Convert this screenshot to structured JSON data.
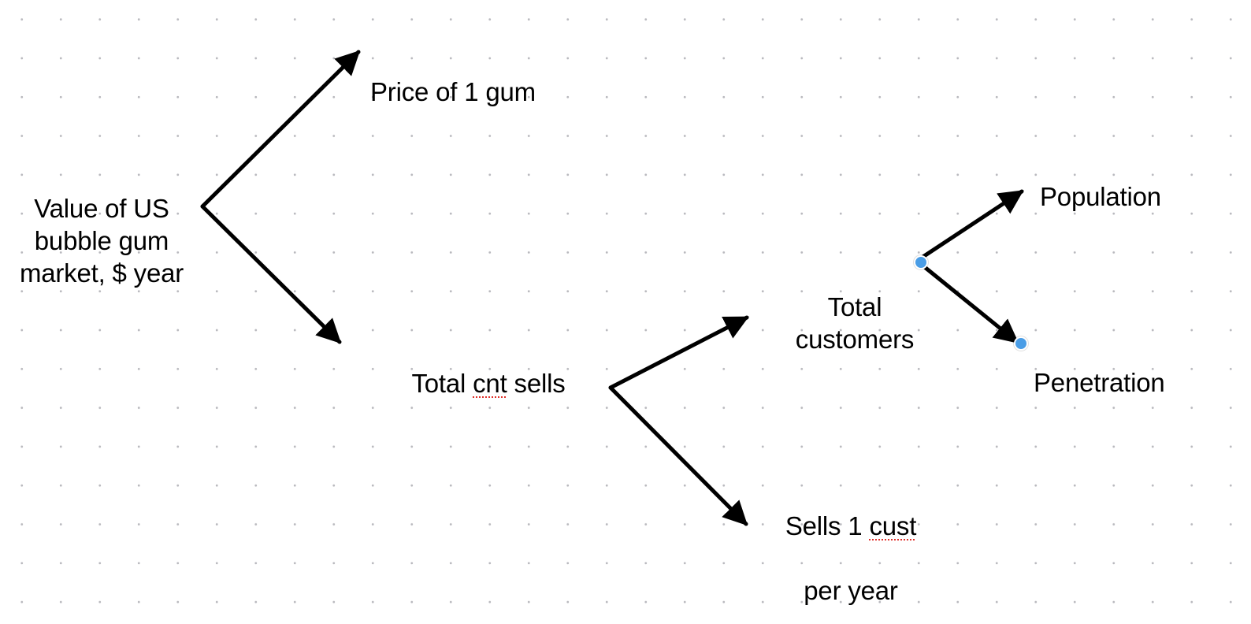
{
  "diagram": {
    "nodes": {
      "root": "Value of US\nbubble gum\nmarket, $ year",
      "price": "Price of 1 gum",
      "total_sells": {
        "before": "Total ",
        "flagged": "cnt",
        "after": " sells"
      },
      "total_customers": "Total\ncustomers",
      "sells_per_customer": {
        "line1_before": "Sells 1 ",
        "line1_flagged": "cust",
        "line2": "per year"
      },
      "population": "Population",
      "penetration": "Penetration"
    },
    "edges": [
      {
        "from": "root",
        "to": "price"
      },
      {
        "from": "root",
        "to": "total_sells"
      },
      {
        "from": "total_sells",
        "to": "total_customers"
      },
      {
        "from": "total_sells",
        "to": "sells_per_customer"
      },
      {
        "from": "total_customers",
        "to": "population"
      },
      {
        "from": "total_customers",
        "to": "penetration"
      }
    ],
    "selected_edge": "total_customers->penetration",
    "colors": {
      "arrow": "#000000",
      "dot_grid": "#b9b9be",
      "selection_handle": "#4a9de6",
      "spellcheck_underline": "#e0302a"
    }
  }
}
